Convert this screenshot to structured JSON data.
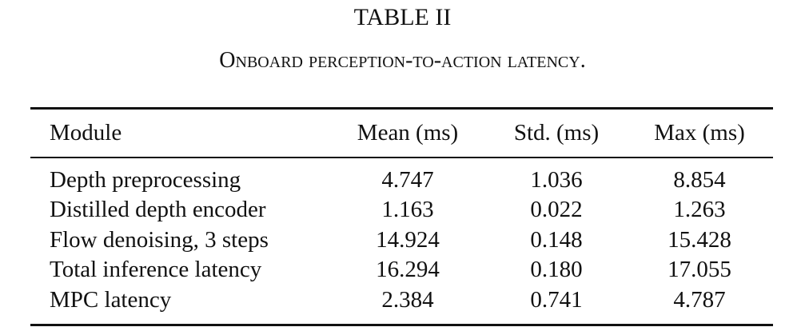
{
  "table_label": "TABLE II",
  "caption": "Onboard perception-to-action latency.",
  "headers": {
    "module": "Module",
    "mean": "Mean (ms)",
    "std": "Std. (ms)",
    "max": "Max (ms)"
  },
  "rows": [
    {
      "module": "Depth preprocessing",
      "mean": "4.747",
      "std": "1.036",
      "max": "8.854"
    },
    {
      "module": "Distilled depth encoder",
      "mean": "1.163",
      "std": "0.022",
      "max": "1.263"
    },
    {
      "module": "Flow denoising, 3 steps",
      "mean": "14.924",
      "std": "0.148",
      "max": "15.428"
    },
    {
      "module": "Total inference latency",
      "mean": "16.294",
      "std": "0.180",
      "max": "17.055"
    },
    {
      "module": "MPC latency",
      "mean": "2.384",
      "std": "0.741",
      "max": "4.787"
    }
  ]
}
